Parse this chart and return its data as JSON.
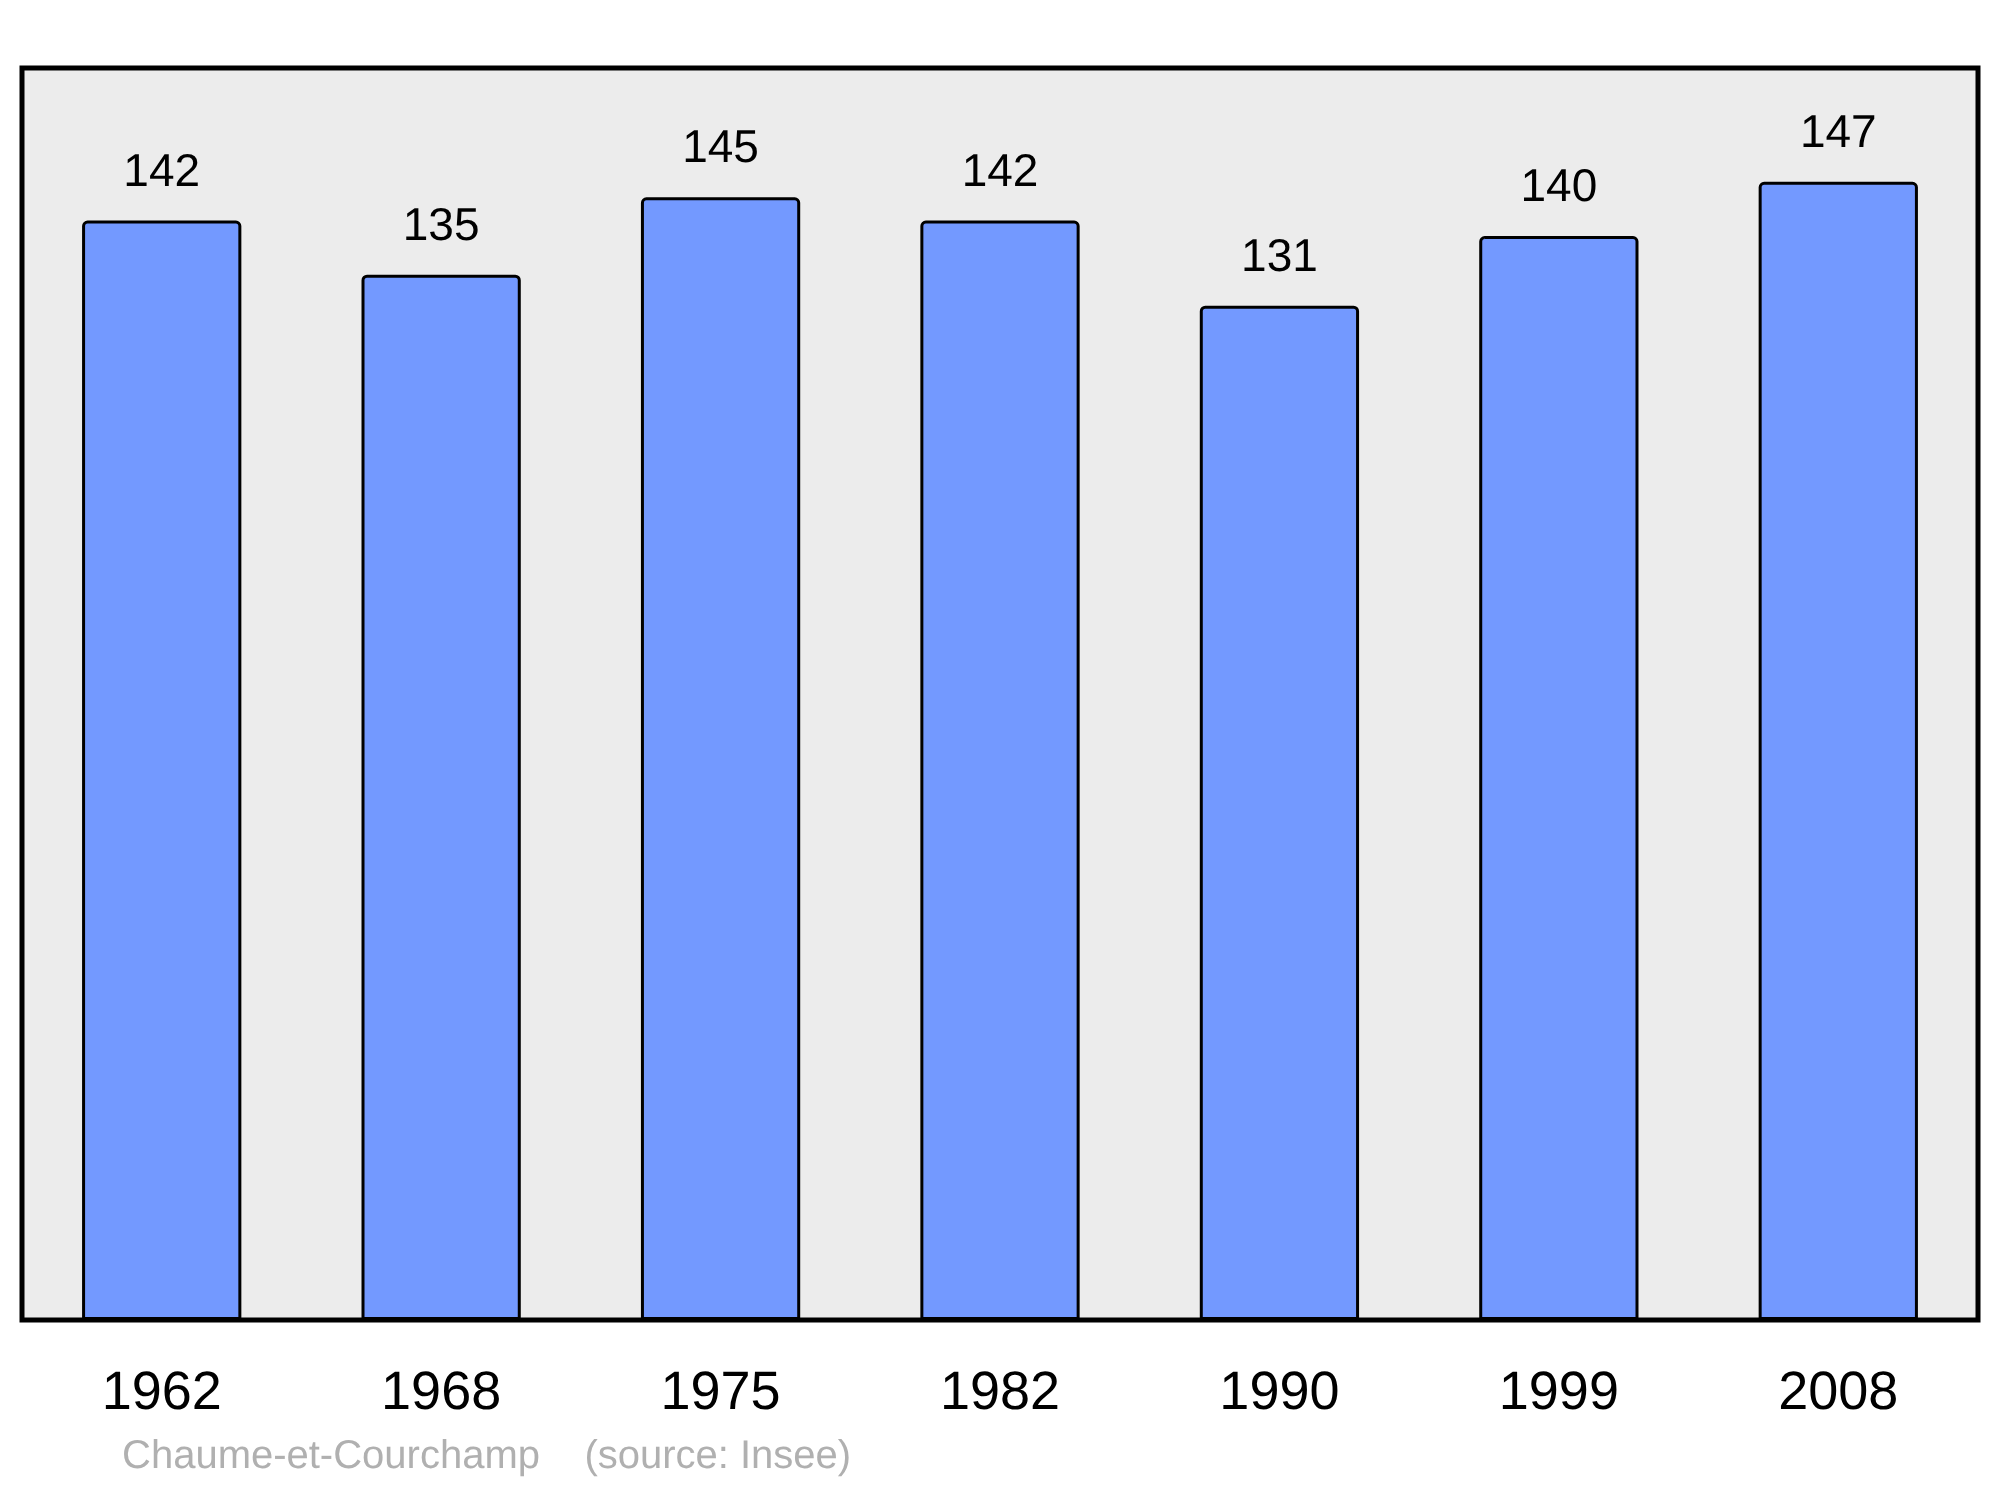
{
  "chart_data": {
    "type": "bar",
    "categories": [
      "1962",
      "1968",
      "1975",
      "1982",
      "1990",
      "1999",
      "2008"
    ],
    "values": [
      142,
      135,
      145,
      142,
      131,
      140,
      147
    ],
    "color": "#7399ff",
    "data_labels": true,
    "grid": false,
    "annotations": [
      "Chaume-et-Courchamp    (source: Insee)"
    ]
  }
}
